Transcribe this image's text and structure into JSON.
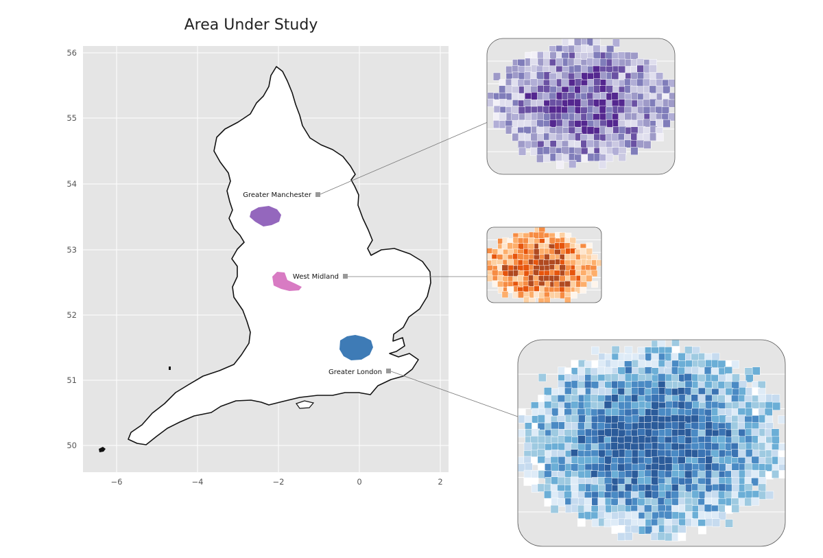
{
  "title": "Area Under Study",
  "axes": {
    "x_ticks": [
      "−6",
      "−4",
      "−2",
      "0",
      "2"
    ],
    "y_ticks": [
      "50",
      "51",
      "52",
      "53",
      "54",
      "55",
      "56"
    ]
  },
  "regions": [
    {
      "label": "Greater Manchester",
      "color": "#9467bd",
      "lon": -1.05,
      "lat": 53.82
    },
    {
      "label": "West Midland",
      "color": "#d87bc3",
      "lon": -0.35,
      "lat": 52.58
    },
    {
      "label": "Greater London",
      "color": "#3e7bb6",
      "lon": 0.72,
      "lat": 51.15
    }
  ],
  "insets": [
    {
      "name": "manchester",
      "palette": [
        "#f2f0f7",
        "#e0dfee",
        "#cbc9e2",
        "#b1aed6",
        "#9e9ac8",
        "#807dba",
        "#6a51a3",
        "#54278f"
      ]
    },
    {
      "name": "west-midlands",
      "palette": [
        "#fff5eb",
        "#fee6ce",
        "#fdd0a2",
        "#fdae6b",
        "#f68c43",
        "#e6550d",
        "#b04a20"
      ]
    },
    {
      "name": "london",
      "palette": [
        "#ffffff",
        "#deebf7",
        "#c6dbef",
        "#9ecae1",
        "#6baed6",
        "#4a8ac4",
        "#3a73b3",
        "#2b5b9a"
      ]
    }
  ],
  "colors": {
    "panel_bg": "#e5e5e5",
    "grid": "#ffffff",
    "land": "#ffffff",
    "coast": "#111111",
    "marker": "#999999"
  }
}
